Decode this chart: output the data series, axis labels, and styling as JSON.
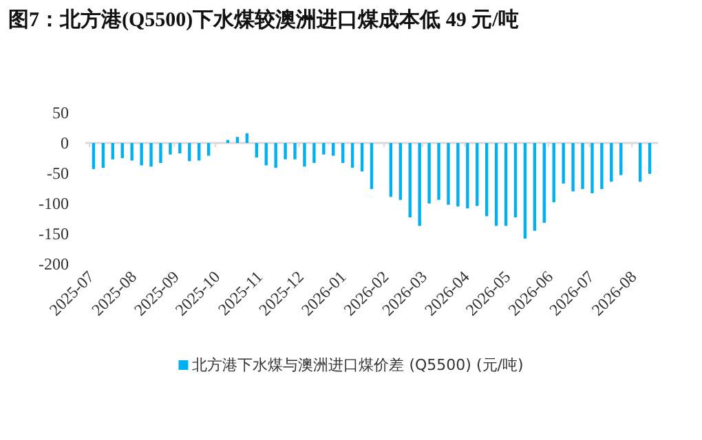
{
  "chart_data": {
    "type": "bar",
    "title": "图7：北方港(Q5500)下水煤较澳洲进口煤成本低 49 元/吨",
    "x": [
      "2025-07-04",
      "2025-07-11",
      "2025-07-18",
      "2025-07-25",
      "2025-08-01",
      "2025-08-08",
      "2025-08-15",
      "2025-08-22",
      "2025-08-29",
      "2025-09-05",
      "2025-09-12",
      "2025-09-19",
      "2025-09-26",
      "2025-10-03",
      "2025-10-10",
      "2025-10-17",
      "2025-10-24",
      "2025-10-31",
      "2025-11-07",
      "2025-11-14",
      "2025-11-21",
      "2025-11-28",
      "2025-12-05",
      "2025-12-12",
      "2025-12-19",
      "2025-12-26",
      "2026-01-02",
      "2026-01-09",
      "2026-01-16",
      "2026-01-23",
      "2026-01-30",
      "2026-02-06",
      "2026-02-13",
      "2026-02-20",
      "2026-02-27",
      "2026-03-06",
      "2026-03-13",
      "2026-03-20",
      "2026-03-27",
      "2026-04-03",
      "2026-04-10",
      "2026-04-17",
      "2026-04-24",
      "2026-05-01",
      "2026-05-08",
      "2026-05-15",
      "2026-05-22",
      "2026-05-29",
      "2026-06-05",
      "2026-06-12",
      "2026-06-19",
      "2026-06-26",
      "2026-07-03",
      "2026-07-10",
      "2026-07-17",
      "2026-07-24",
      "2026-07-31",
      "2026-08-07",
      "2026-08-14"
    ],
    "series": [
      {
        "name": "北方港下水煤与澳洲进口煤价差 (Q5500) (元/吨)",
        "color": "#00b0f0",
        "values": [
          -43,
          -41,
          -27,
          -25,
          -29,
          -37,
          -39,
          -33,
          -19,
          -17,
          -30,
          -29,
          -21,
          null,
          5,
          10,
          16,
          -24,
          -37,
          -41,
          -27,
          -27,
          -39,
          -33,
          -19,
          -21,
          -33,
          -41,
          -47,
          -76,
          null,
          -89,
          -94,
          -123,
          -137,
          -100,
          -94,
          -102,
          -105,
          -108,
          -104,
          -121,
          -137,
          -137,
          -123,
          -158,
          -145,
          -132,
          -98,
          -67,
          -80,
          -76,
          -83,
          -76,
          -64,
          -53,
          null,
          -64,
          -51
        ]
      }
    ],
    "xlim": [
      "2025-06-28",
      "2026-08-20"
    ],
    "xticks": [
      {
        "value": "2025-07-01",
        "label": "2025-07"
      },
      {
        "value": "2025-08-01",
        "label": "2025-08"
      },
      {
        "value": "2025-09-01",
        "label": "2025-09"
      },
      {
        "value": "2025-10-01",
        "label": "2025-10"
      },
      {
        "value": "2025-11-01",
        "label": "2025-11"
      },
      {
        "value": "2025-12-01",
        "label": "2025-12"
      },
      {
        "value": "2026-01-01",
        "label": "2026-01"
      },
      {
        "value": "2026-02-01",
        "label": "2026-02"
      },
      {
        "value": "2026-03-01",
        "label": "2026-03"
      },
      {
        "value": "2026-04-01",
        "label": "2026-04"
      },
      {
        "value": "2026-05-01",
        "label": "2026-05"
      },
      {
        "value": "2026-06-01",
        "label": "2026-06"
      },
      {
        "value": "2026-07-01",
        "label": "2026-07"
      },
      {
        "value": "2026-08-01",
        "label": "2026-08"
      }
    ],
    "ylim": [
      -200,
      50
    ],
    "yticks": [
      50,
      0,
      -50,
      -100,
      -150,
      -200
    ],
    "legend": "bottom"
  }
}
